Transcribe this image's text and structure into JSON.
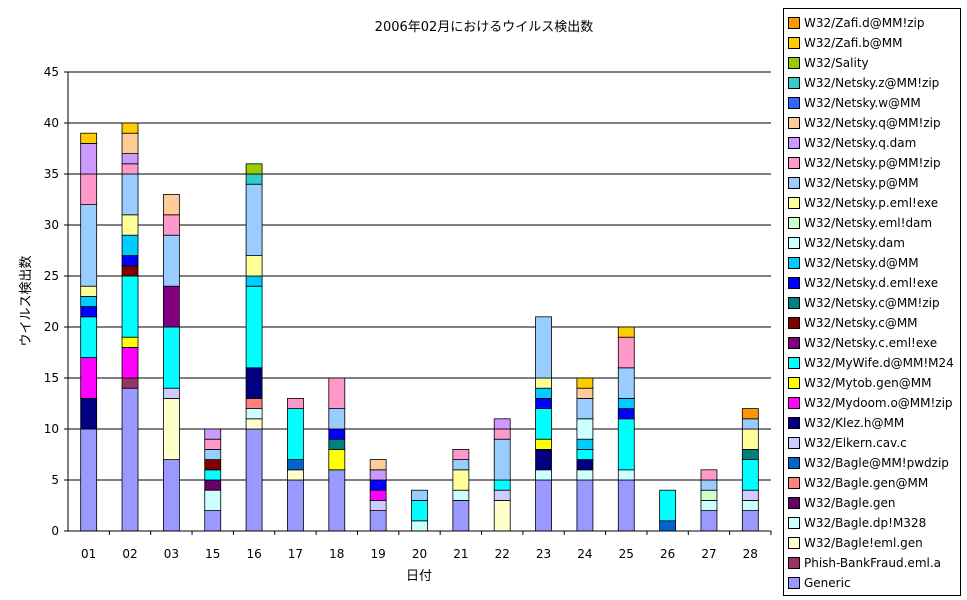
{
  "chart_data": {
    "type": "bar",
    "stacked": true,
    "title": "2006年02月におけるウイルス検出数",
    "xlabel": "日付",
    "ylabel": "ウイルス検出数",
    "ylim": [
      0,
      45
    ],
    "yticks": [
      0,
      5,
      10,
      15,
      20,
      25,
      30,
      35,
      40,
      45
    ],
    "grid": true,
    "legend_position": "right",
    "categories": [
      "01",
      "02",
      "03",
      "15",
      "16",
      "17",
      "18",
      "19",
      "20",
      "21",
      "22",
      "23",
      "24",
      "25",
      "26",
      "27",
      "28"
    ],
    "series": [
      {
        "name": "Generic",
        "color": "#9999FF",
        "values": [
          10,
          14,
          7,
          2,
          10,
          5,
          6,
          2,
          0,
          3,
          0,
          5,
          5,
          5,
          0,
          2,
          2
        ]
      },
      {
        "name": "Phish-BankFraud.eml.a",
        "color": "#993366",
        "values": [
          0,
          1,
          0,
          0,
          0,
          0,
          0,
          0,
          0,
          0,
          0,
          0,
          0,
          0,
          0,
          0,
          0
        ]
      },
      {
        "name": "W32/Bagle!eml.gen",
        "color": "#FFFFCC",
        "values": [
          0,
          0,
          6,
          0,
          1,
          1,
          0,
          0,
          0,
          0,
          3,
          0,
          0,
          0,
          0,
          0,
          0
        ]
      },
      {
        "name": "W32/Bagle.dp!M328",
        "color": "#CCFFFF",
        "values": [
          0,
          0,
          0,
          2,
          1,
          0,
          0,
          0,
          1,
          1,
          0,
          1,
          1,
          1,
          0,
          1,
          1
        ]
      },
      {
        "name": "W32/Bagle.gen",
        "color": "#660066",
        "values": [
          0,
          0,
          0,
          1,
          0,
          0,
          0,
          0,
          0,
          0,
          0,
          0,
          0,
          0,
          0,
          0,
          0
        ]
      },
      {
        "name": "W32/Bagle.gen@MM",
        "color": "#FF8080",
        "values": [
          0,
          0,
          0,
          0,
          1,
          0,
          0,
          0,
          0,
          0,
          0,
          0,
          0,
          0,
          0,
          0,
          0
        ]
      },
      {
        "name": "W32/Bagle@MM!pwdzip",
        "color": "#0066CC",
        "values": [
          0,
          0,
          0,
          0,
          0,
          1,
          0,
          0,
          0,
          0,
          0,
          0,
          0,
          0,
          1,
          0,
          0
        ]
      },
      {
        "name": "W32/Elkern.cav.c",
        "color": "#CCCCFF",
        "values": [
          0,
          0,
          1,
          0,
          0,
          0,
          0,
          1,
          0,
          0,
          1,
          0,
          0,
          0,
          0,
          0,
          1
        ]
      },
      {
        "name": "W32/Klez.h@MM",
        "color": "#000080",
        "values": [
          3,
          0,
          0,
          0,
          3,
          0,
          0,
          0,
          0,
          0,
          0,
          2,
          1,
          0,
          0,
          0,
          0
        ]
      },
      {
        "name": "W32/Mydoom.o@MM!zip",
        "color": "#FF00FF",
        "values": [
          4,
          3,
          0,
          0,
          0,
          0,
          0,
          1,
          0,
          0,
          0,
          0,
          0,
          0,
          0,
          0,
          0
        ]
      },
      {
        "name": "W32/Mytob.gen@MM",
        "color": "#FFFF00",
        "values": [
          0,
          1,
          0,
          0,
          0,
          0,
          2,
          0,
          0,
          0,
          0,
          1,
          0,
          0,
          0,
          0,
          0
        ]
      },
      {
        "name": "W32/MyWife.d@MM!M24",
        "color": "#00FFFF",
        "values": [
          4,
          6,
          6,
          1,
          8,
          5,
          0,
          0,
          2,
          0,
          1,
          3,
          1,
          5,
          3,
          0,
          3
        ]
      },
      {
        "name": "W32/Netsky.c.eml!exe",
        "color": "#800080",
        "values": [
          0,
          0,
          4,
          0,
          0,
          0,
          0,
          0,
          0,
          0,
          0,
          0,
          0,
          0,
          0,
          0,
          0
        ]
      },
      {
        "name": "W32/Netsky.c@MM",
        "color": "#800000",
        "values": [
          0,
          1,
          0,
          1,
          0,
          0,
          0,
          0,
          0,
          0,
          0,
          0,
          0,
          0,
          0,
          0,
          0
        ]
      },
      {
        "name": "W32/Netsky.c@MM!zip",
        "color": "#008080",
        "values": [
          0,
          0,
          0,
          0,
          0,
          0,
          1,
          0,
          0,
          0,
          0,
          0,
          0,
          0,
          0,
          0,
          1
        ]
      },
      {
        "name": "W32/Netsky.d.eml!exe",
        "color": "#0000FF",
        "values": [
          1,
          1,
          0,
          0,
          0,
          0,
          1,
          1,
          0,
          0,
          0,
          1,
          0,
          1,
          0,
          0,
          0
        ]
      },
      {
        "name": "W32/Netsky.d@MM",
        "color": "#00CCFF",
        "values": [
          1,
          2,
          0,
          0,
          1,
          0,
          0,
          0,
          0,
          0,
          0,
          1,
          1,
          1,
          0,
          0,
          0
        ]
      },
      {
        "name": "W32/Netsky.dam",
        "color": "#CCFFFF",
        "values": [
          0,
          0,
          0,
          0,
          0,
          0,
          0,
          0,
          0,
          0,
          0,
          0,
          2,
          0,
          0,
          0,
          0
        ]
      },
      {
        "name": "W32/Netsky.eml!dam",
        "color": "#CCFFCC",
        "values": [
          0,
          0,
          0,
          0,
          0,
          0,
          0,
          0,
          0,
          0,
          0,
          0,
          0,
          0,
          0,
          1,
          0
        ]
      },
      {
        "name": "W32/Netsky.p.eml!exe",
        "color": "#FFFF99",
        "values": [
          1,
          2,
          0,
          0,
          2,
          0,
          0,
          0,
          0,
          2,
          0,
          1,
          0,
          0,
          0,
          0,
          2
        ]
      },
      {
        "name": "W32/Netsky.p@MM",
        "color": "#99CCFF",
        "values": [
          8,
          4,
          5,
          1,
          7,
          0,
          2,
          0,
          1,
          1,
          4,
          6,
          2,
          3,
          0,
          1,
          1
        ]
      },
      {
        "name": "W32/Netsky.p@MM!zip",
        "color": "#FF99CC",
        "values": [
          3,
          1,
          2,
          1,
          0,
          1,
          3,
          0,
          0,
          1,
          1,
          0,
          0,
          3,
          0,
          1,
          0
        ]
      },
      {
        "name": "W32/Netsky.q.dam",
        "color": "#CC99FF",
        "values": [
          3,
          1,
          0,
          1,
          0,
          0,
          0,
          1,
          0,
          0,
          1,
          0,
          0,
          0,
          0,
          0,
          0
        ]
      },
      {
        "name": "W32/Netsky.q@MM!zip",
        "color": "#FFCC99",
        "values": [
          0,
          2,
          2,
          0,
          0,
          0,
          0,
          1,
          0,
          0,
          0,
          0,
          1,
          0,
          0,
          0,
          0
        ]
      },
      {
        "name": "W32/Netsky.w@MM",
        "color": "#3366FF",
        "values": [
          0,
          0,
          0,
          0,
          0,
          0,
          0,
          0,
          0,
          0,
          0,
          0,
          0,
          0,
          0,
          0,
          0
        ]
      },
      {
        "name": "W32/Netsky.z@MM!zip",
        "color": "#33CCCC",
        "values": [
          0,
          0,
          0,
          0,
          1,
          0,
          0,
          0,
          0,
          0,
          0,
          0,
          0,
          0,
          0,
          0,
          0
        ]
      },
      {
        "name": "W32/Sality",
        "color": "#99CC00",
        "values": [
          0,
          0,
          0,
          0,
          1,
          0,
          0,
          0,
          0,
          0,
          0,
          0,
          0,
          0,
          0,
          0,
          0
        ]
      },
      {
        "name": "W32/Zafi.b@MM",
        "color": "#FFCC00",
        "values": [
          1,
          1,
          0,
          0,
          0,
          0,
          0,
          0,
          0,
          0,
          0,
          0,
          1,
          1,
          0,
          0,
          0
        ]
      },
      {
        "name": "W32/Zafi.d@MM!zip",
        "color": "#FF9900",
        "values": [
          0,
          0,
          0,
          0,
          0,
          0,
          0,
          0,
          0,
          0,
          0,
          0,
          0,
          0,
          0,
          0,
          1
        ]
      }
    ]
  }
}
